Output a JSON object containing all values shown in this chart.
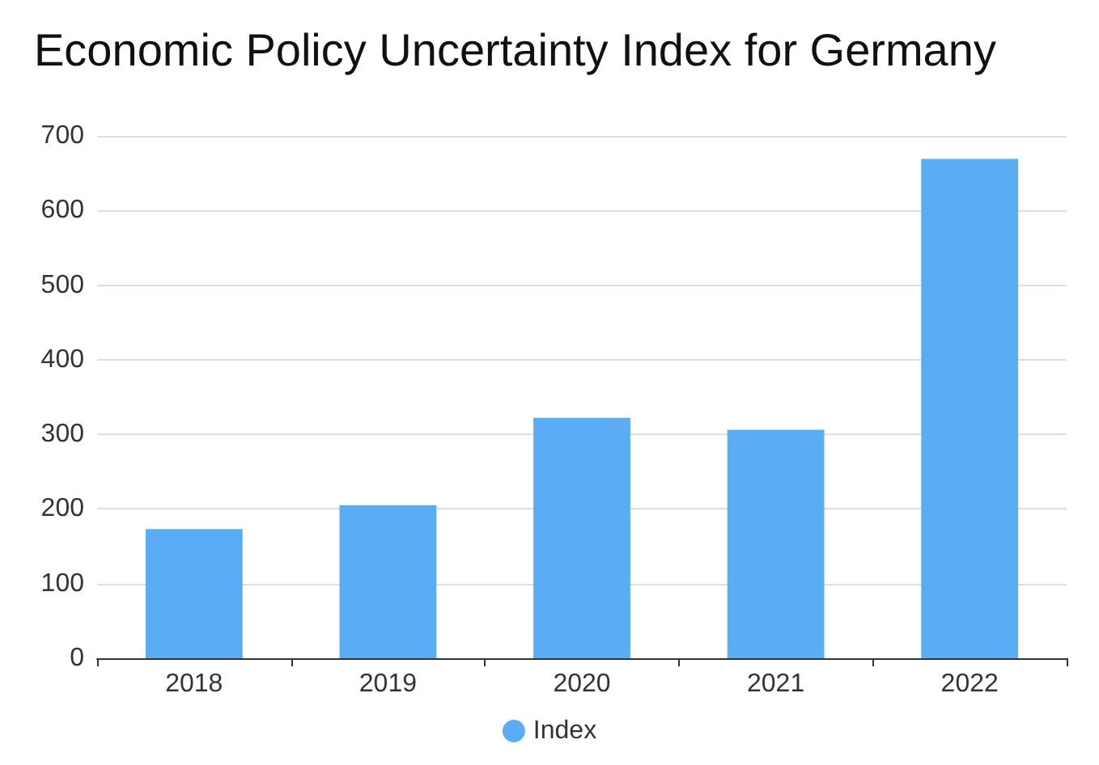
{
  "chart_data": {
    "type": "bar",
    "title": "Economic Policy Uncertainty Index for Germany",
    "categories": [
      "2018",
      "2019",
      "2020",
      "2021",
      "2022"
    ],
    "series": [
      {
        "name": "Index",
        "color": "#5aadf5",
        "values": [
          173,
          205,
          322,
          306,
          669
        ]
      }
    ],
    "ylim": [
      0,
      700
    ],
    "yticks": [
      0,
      100,
      200,
      300,
      400,
      500,
      600,
      700
    ],
    "grid": "y",
    "legend": "bottom"
  }
}
